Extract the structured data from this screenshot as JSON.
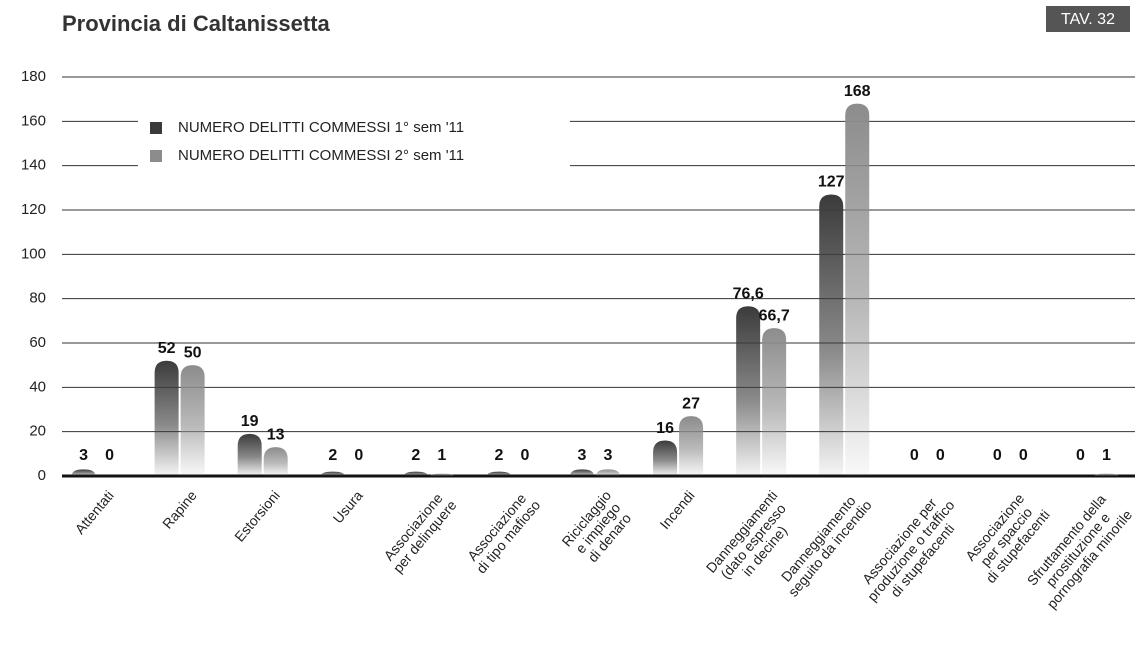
{
  "chart_data": {
    "type": "bar",
    "title": "Provincia di Caltanissetta",
    "badge": "TAV. 32",
    "categories": [
      "Attentati",
      "Rapine",
      "Estorsioni",
      "Usura",
      "Associazione\nper delinquere",
      "Associazione\ndi tipo mafioso",
      "Riciclaggio\ne impiego\ndi denaro",
      "Incendi",
      "Danneggiamenti\n(dato espresso\nin decine)",
      "Danneggiamento\nseguito da incendio",
      "Associazione per\nproduzione o traffico\ndi stupefacenti",
      "Associazione\nper spaccio\ndi stupefacenti",
      "Sfruttamento della\nprostituzione e\npornografia minorile"
    ],
    "series": [
      {
        "name": "NUMERO DELITTI COMMESSI 1° sem '11",
        "color": "#3b3b3b",
        "values": [
          3,
          52,
          19,
          2,
          2,
          2,
          3,
          16,
          76.6,
          127,
          0,
          0,
          0
        ],
        "value_labels": [
          "3",
          "52",
          "19",
          "2",
          "2",
          "2",
          "3",
          "16",
          "76,6",
          "127",
          "0",
          "0",
          "0"
        ]
      },
      {
        "name": "NUMERO DELITTI COMMESSI 2° sem '11",
        "color": "#8c8c8c",
        "values": [
          0,
          50,
          13,
          0,
          1,
          0,
          3,
          27,
          66.7,
          168,
          0,
          0,
          1
        ],
        "value_labels": [
          "0",
          "50",
          "13",
          "0",
          "1",
          "0",
          "3",
          "27",
          "66,7",
          "168",
          "0",
          "0",
          "1"
        ]
      }
    ],
    "ylim": [
      0,
      180
    ],
    "yticks": [
      0,
      20,
      40,
      60,
      80,
      100,
      120,
      140,
      160,
      180
    ],
    "grid": true,
    "legend": "upper left"
  }
}
